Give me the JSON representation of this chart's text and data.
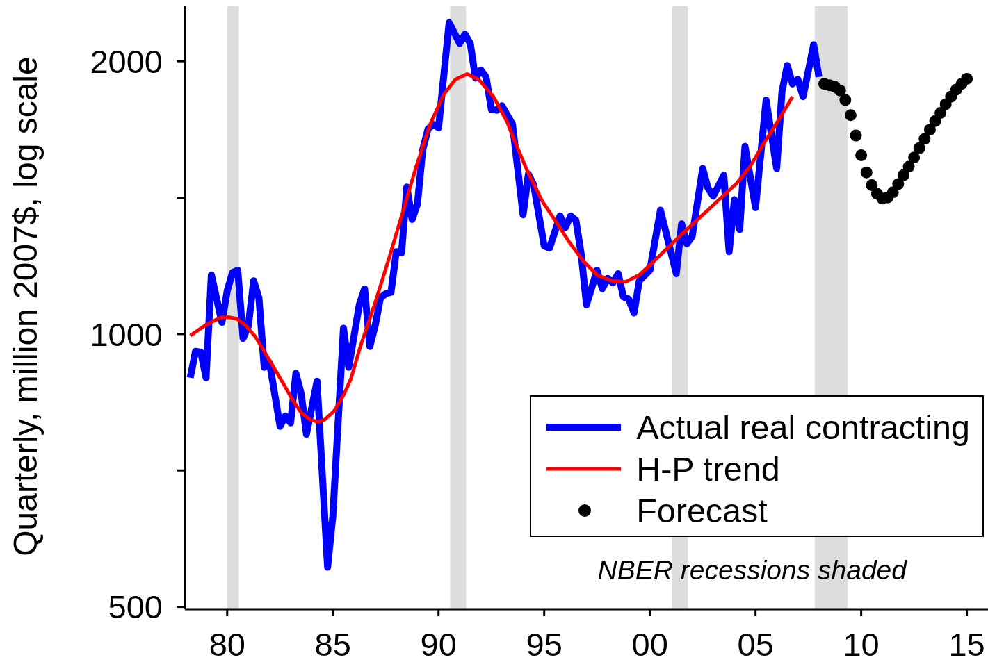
{
  "chart_data": {
    "type": "line",
    "ylabel": "Quarterly, million 2007$, log scale",
    "xlim": [
      1978,
      2016
    ],
    "xticks": [
      {
        "value": 1980,
        "label": "80"
      },
      {
        "value": 1985,
        "label": "85"
      },
      {
        "value": 1990,
        "label": "90"
      },
      {
        "value": 1995,
        "label": "95"
      },
      {
        "value": 2000,
        "label": "00"
      },
      {
        "value": 2005,
        "label": "05"
      },
      {
        "value": 2010,
        "label": "10"
      },
      {
        "value": 2015,
        "label": "15"
      }
    ],
    "ylim": [
      497,
      2300
    ],
    "yticks": [
      500,
      {
        "value": 707.1,
        "label": null
      },
      1000,
      {
        "value": 1414.2,
        "label": null
      },
      2000
    ],
    "log": true,
    "legend": "bottom right",
    "bands": [
      {
        "axis": "x",
        "from": 1980.0,
        "to": 1980.55,
        "color": "#dddddd"
      },
      {
        "axis": "x",
        "from": 1990.55,
        "to": 1991.3,
        "color": "#dddddd"
      },
      {
        "axis": "x",
        "from": 2001.05,
        "to": 2001.8,
        "color": "#dddddd"
      },
      {
        "axis": "x",
        "from": 2007.8,
        "to": 2009.35,
        "color": "#dddddd"
      }
    ],
    "annotations": [
      "NBER recessions shaded"
    ],
    "series": [
      {
        "name": "Actual real contracting",
        "type": "line",
        "color": "#0000ff",
        "x": [
          1978.25,
          1978.5,
          1978.75,
          1979.0,
          1979.25,
          1979.75,
          1980.0,
          1980.25,
          1980.5,
          1980.75,
          1981.0,
          1981.25,
          1981.5,
          1981.75,
          1982.0,
          1982.5,
          1982.75,
          1983.0,
          1983.25,
          1983.5,
          1983.75,
          1984.25,
          1984.75,
          1985.0,
          1985.5,
          1985.75,
          1986.25,
          1986.5,
          1986.75,
          1987.0,
          1987.25,
          1987.5,
          1987.75,
          1988.0,
          1988.25,
          1988.5,
          1988.75,
          1989.0,
          1989.25,
          1989.5,
          1989.75,
          1990.0,
          1990.5,
          1991.0,
          1991.25,
          1991.5,
          1991.75,
          1992.0,
          1992.25,
          1992.5,
          1992.75,
          1993.0,
          1993.5,
          1994.0,
          1994.25,
          1994.5,
          1995.0,
          1995.25,
          1995.75,
          1996.0,
          1996.25,
          1996.5,
          1996.75,
          1997.0,
          1997.5,
          1997.75,
          1998.0,
          1998.25,
          1998.5,
          1998.75,
          1999.0,
          1999.25,
          1999.5,
          2000.0,
          2000.5,
          2001.25,
          2001.5,
          2001.75,
          2002.0,
          2002.5,
          2002.75,
          2003.0,
          2003.5,
          2003.75,
          2004.0,
          2004.25,
          2004.5,
          2005.0,
          2005.5,
          2006.0,
          2006.25,
          2006.5,
          2006.75,
          2007.0,
          2007.25,
          2007.75,
          2008.0
        ],
        "values": [
          895,
          957,
          955,
          895,
          1162,
          1030,
          1116,
          1169,
          1176,
          989,
          1021,
          1145,
          1096,
          919,
          930,
          791,
          812,
          798,
          905,
          859,
          775,
          887,
          553,
          631,
          1015,
          919,
          1077,
          1122,
          969,
          1021,
          1096,
          1108,
          1112,
          1233,
          1229,
          1453,
          1338,
          1391,
          1597,
          1683,
          1704,
          1689,
          2206,
          2093,
          2142,
          2093,
          1916,
          1956,
          1922,
          1770,
          1766,
          1786,
          1704,
          1354,
          1501,
          1462,
          1251,
          1244,
          1350,
          1311,
          1350,
          1335,
          1226,
          1077,
          1176,
          1122,
          1152,
          1139,
          1166,
          1099,
          1093,
          1055,
          1145,
          1176,
          1370,
          1166,
          1323,
          1258,
          1281,
          1523,
          1449,
          1420,
          1497,
          1233,
          1407,
          1304,
          1611,
          1379,
          1812,
          1523,
          1850,
          1979,
          1888,
          1910,
          1828,
          2086,
          1922
        ]
      },
      {
        "name": "H-P trend",
        "type": "line",
        "color": "#ff0000",
        "x": [
          1978.25,
          1979.0,
          1979.7,
          1980.05,
          1980.45,
          1980.9,
          1981.35,
          1981.75,
          1982.2,
          1982.65,
          1983.1,
          1983.5,
          1983.95,
          1984.3,
          1984.6,
          1985.05,
          1985.5,
          1985.85,
          1986.3,
          1987.0,
          1987.65,
          1988.3,
          1988.95,
          1989.6,
          1990.25,
          1990.8,
          1991.35,
          1991.9,
          1992.6,
          1993.25,
          1993.55,
          1994.2,
          1994.9,
          1995.55,
          1996.2,
          1996.85,
          1997.5,
          1998.2,
          1998.85,
          1999.5,
          2000.15,
          2000.8,
          2001.45,
          2002.15,
          2002.8,
          2003.45,
          2004.1,
          2004.75,
          2005.4,
          2006.1,
          2006.75
        ],
        "values": [
          996,
          1024,
          1043,
          1044,
          1040,
          1021,
          992,
          957,
          919,
          882,
          846,
          819,
          804,
          800,
          804,
          822,
          856,
          892,
          969,
          1083,
          1211,
          1362,
          1532,
          1704,
          1839,
          1910,
          1936,
          1910,
          1828,
          1713,
          1644,
          1514,
          1403,
          1331,
          1262,
          1204,
          1162,
          1145,
          1142,
          1162,
          1201,
          1242,
          1285,
          1331,
          1374,
          1420,
          1466,
          1532,
          1625,
          1724,
          1828
        ]
      },
      {
        "name": "Forecast",
        "type": "scatter",
        "color": "#000000",
        "marker": "circle",
        "x": [
          2008.25,
          2008.5,
          2008.75,
          2009.0,
          2009.25,
          2009.5,
          2009.75,
          2010.0,
          2010.25,
          2010.5,
          2010.75,
          2011.0,
          2011.25,
          2011.5,
          2011.75,
          2012.0,
          2012.25,
          2012.5,
          2012.75,
          2013.0,
          2013.25,
          2013.5,
          2013.75,
          2014.0,
          2014.25,
          2014.5,
          2014.75,
          2015.0
        ],
        "values": [
          1888,
          1882,
          1874,
          1857,
          1812,
          1744,
          1656,
          1575,
          1508,
          1460,
          1428,
          1411,
          1415,
          1434,
          1464,
          1497,
          1530,
          1566,
          1604,
          1642,
          1681,
          1718,
          1754,
          1793,
          1828,
          1861,
          1888,
          1913
        ]
      }
    ]
  }
}
